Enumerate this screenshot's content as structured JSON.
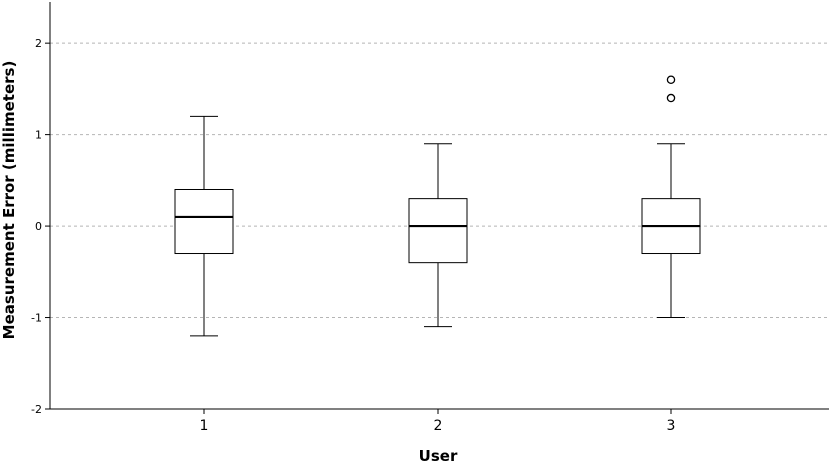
{
  "chart_data": {
    "type": "box",
    "xlabel": "User",
    "ylabel": "Measurement Error (millimeters)",
    "categories": [
      "1",
      "2",
      "3"
    ],
    "ylim": [
      -2,
      2.45
    ],
    "yticks": [
      -2,
      -1,
      0,
      1,
      2
    ],
    "ytick_labels": [
      "-2",
      "-1",
      "0",
      "1",
      "2"
    ],
    "grid": true,
    "boxes": [
      {
        "category": "1",
        "min": -1.2,
        "q1": -0.3,
        "median": 0.1,
        "q3": 0.4,
        "max": 1.2,
        "outliers": []
      },
      {
        "category": "2",
        "min": -1.1,
        "q1": -0.4,
        "median": 0.0,
        "q3": 0.3,
        "max": 0.9,
        "outliers": []
      },
      {
        "category": "3",
        "min": -1.0,
        "q1": -0.3,
        "median": 0.0,
        "q3": 0.3,
        "max": 0.9,
        "outliers": [
          1.4,
          1.6
        ]
      }
    ]
  }
}
